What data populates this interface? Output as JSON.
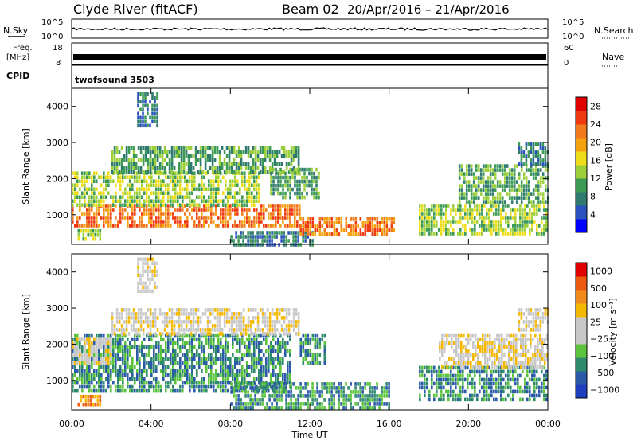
{
  "header": {
    "station": "Clyde River (fitACF)",
    "beam": "Beam 02",
    "dates": "20/Apr/2016 – 21/Apr/2016"
  },
  "top_panels": {
    "nsky_label": "N.Sky",
    "nsky_top": "10^5",
    "nsky_bottom": "10^0",
    "nsearch_label": "N.Search",
    "nsearch_top": "10^5",
    "nsearch_bottom": "10^0",
    "freq_label": "Freq.",
    "freq_unit": "[MHz]",
    "freq_top": "18",
    "freq_bottom": "8",
    "nave_label": "Nave",
    "nave_top": "60",
    "nave_bottom": "0",
    "cpid_label": "CPID",
    "cpid_value": "twofsound 3503"
  },
  "colors": {
    "power": [
      "#0000ff",
      "#2a52be",
      "#2f7a6e",
      "#3c9a55",
      "#9ccf3a",
      "#f0dd1a",
      "#f4a20e",
      "#f07a1c",
      "#ee3a10",
      "#e00000"
    ],
    "velocity": [
      "#1f3fbf",
      "#2a5aa8",
      "#2e8a6a",
      "#5cc43c",
      "#c8c8c8",
      "#c8c8c8",
      "#f5b800",
      "#f08a1c",
      "#ec5a10",
      "#e00000"
    ]
  },
  "chart_data": [
    {
      "type": "heatmap",
      "panel": "power",
      "x_range": [
        "00:00",
        "00:00"
      ],
      "ylabel": "Slant Range [km]",
      "ylim": [
        180,
        4500
      ],
      "yticks": [
        "1000",
        "2000",
        "3000",
        "4000"
      ],
      "colorbar": {
        "label": "Power [dB]",
        "ticks": [
          "4",
          "8",
          "12",
          "16",
          "20",
          "24",
          "28"
        ],
        "range": [
          0,
          30
        ]
      },
      "regions": [
        {
          "t0": 0.0,
          "t1": 11.5,
          "r0": 700,
          "r1": 1300,
          "value": 24
        },
        {
          "t0": 0.0,
          "t1": 9.5,
          "r0": 1300,
          "r1": 2200,
          "value": 12
        },
        {
          "t0": 2.0,
          "t1": 11.5,
          "r0": 2200,
          "r1": 2900,
          "value": 10
        },
        {
          "t0": 0.3,
          "t1": 1.5,
          "r0": 300,
          "r1": 600,
          "value": 14
        },
        {
          "t0": 8.0,
          "t1": 12.2,
          "r0": 200,
          "r1": 550,
          "value": 8
        },
        {
          "t0": 10.0,
          "t1": 12.5,
          "r0": 1500,
          "r1": 2300,
          "value": 10
        },
        {
          "t0": 11.5,
          "t1": 16.2,
          "r0": 450,
          "r1": 950,
          "value": 22
        },
        {
          "t0": 17.5,
          "t1": 24.0,
          "r0": 500,
          "r1": 1300,
          "value": 13
        },
        {
          "t0": 19.5,
          "t1": 24.0,
          "r0": 1300,
          "r1": 2400,
          "value": 9
        },
        {
          "t0": 22.5,
          "t1": 24.0,
          "r0": 2400,
          "r1": 3000,
          "value": 6
        },
        {
          "t0": 3.3,
          "t1": 4.3,
          "r0": 3500,
          "r1": 4400,
          "value": 6
        }
      ]
    },
    {
      "type": "heatmap",
      "panel": "velocity",
      "x_range": [
        "00:00",
        "00:00"
      ],
      "xlabel": "Time UT",
      "xticks": [
        "00:00",
        "04:00",
        "08:00",
        "12:00",
        "16:00",
        "20:00",
        "00:00"
      ],
      "ylabel": "Slant Range [km]",
      "ylim": [
        180,
        4500
      ],
      "yticks": [
        "1000",
        "2000",
        "3000",
        "4000"
      ],
      "colorbar": {
        "label": "Velocity [m s⁻¹]",
        "ticks": [
          "1000",
          "500",
          "100",
          "25",
          "−25",
          "−100",
          "−500",
          "−1000"
        ]
      },
      "regions": [
        {
          "t0": 0.0,
          "t1": 11.0,
          "r0": 700,
          "r1": 2300,
          "value": -300
        },
        {
          "t0": 0.0,
          "t1": 2.0,
          "r0": 1500,
          "r1": 2200,
          "value": 0
        },
        {
          "t0": 2.0,
          "t1": 11.5,
          "r0": 2300,
          "r1": 3000,
          "value": 0
        },
        {
          "t0": 0.3,
          "t1": 1.5,
          "r0": 300,
          "r1": 600,
          "value": 200
        },
        {
          "t0": 8.0,
          "t1": 16.0,
          "r0": 250,
          "r1": 950,
          "value": -150
        },
        {
          "t0": 11.5,
          "t1": 12.8,
          "r0": 1500,
          "r1": 2300,
          "value": -350
        },
        {
          "t0": 17.5,
          "t1": 24.0,
          "r0": 500,
          "r1": 1400,
          "value": -200
        },
        {
          "t0": 18.5,
          "t1": 24.0,
          "r0": 1400,
          "r1": 2300,
          "value": 0
        },
        {
          "t0": 22.5,
          "t1": 24.0,
          "r0": 2400,
          "r1": 3000,
          "value": 0
        },
        {
          "t0": 3.3,
          "t1": 4.3,
          "r0": 3500,
          "r1": 4400,
          "value": 0
        }
      ]
    }
  ]
}
